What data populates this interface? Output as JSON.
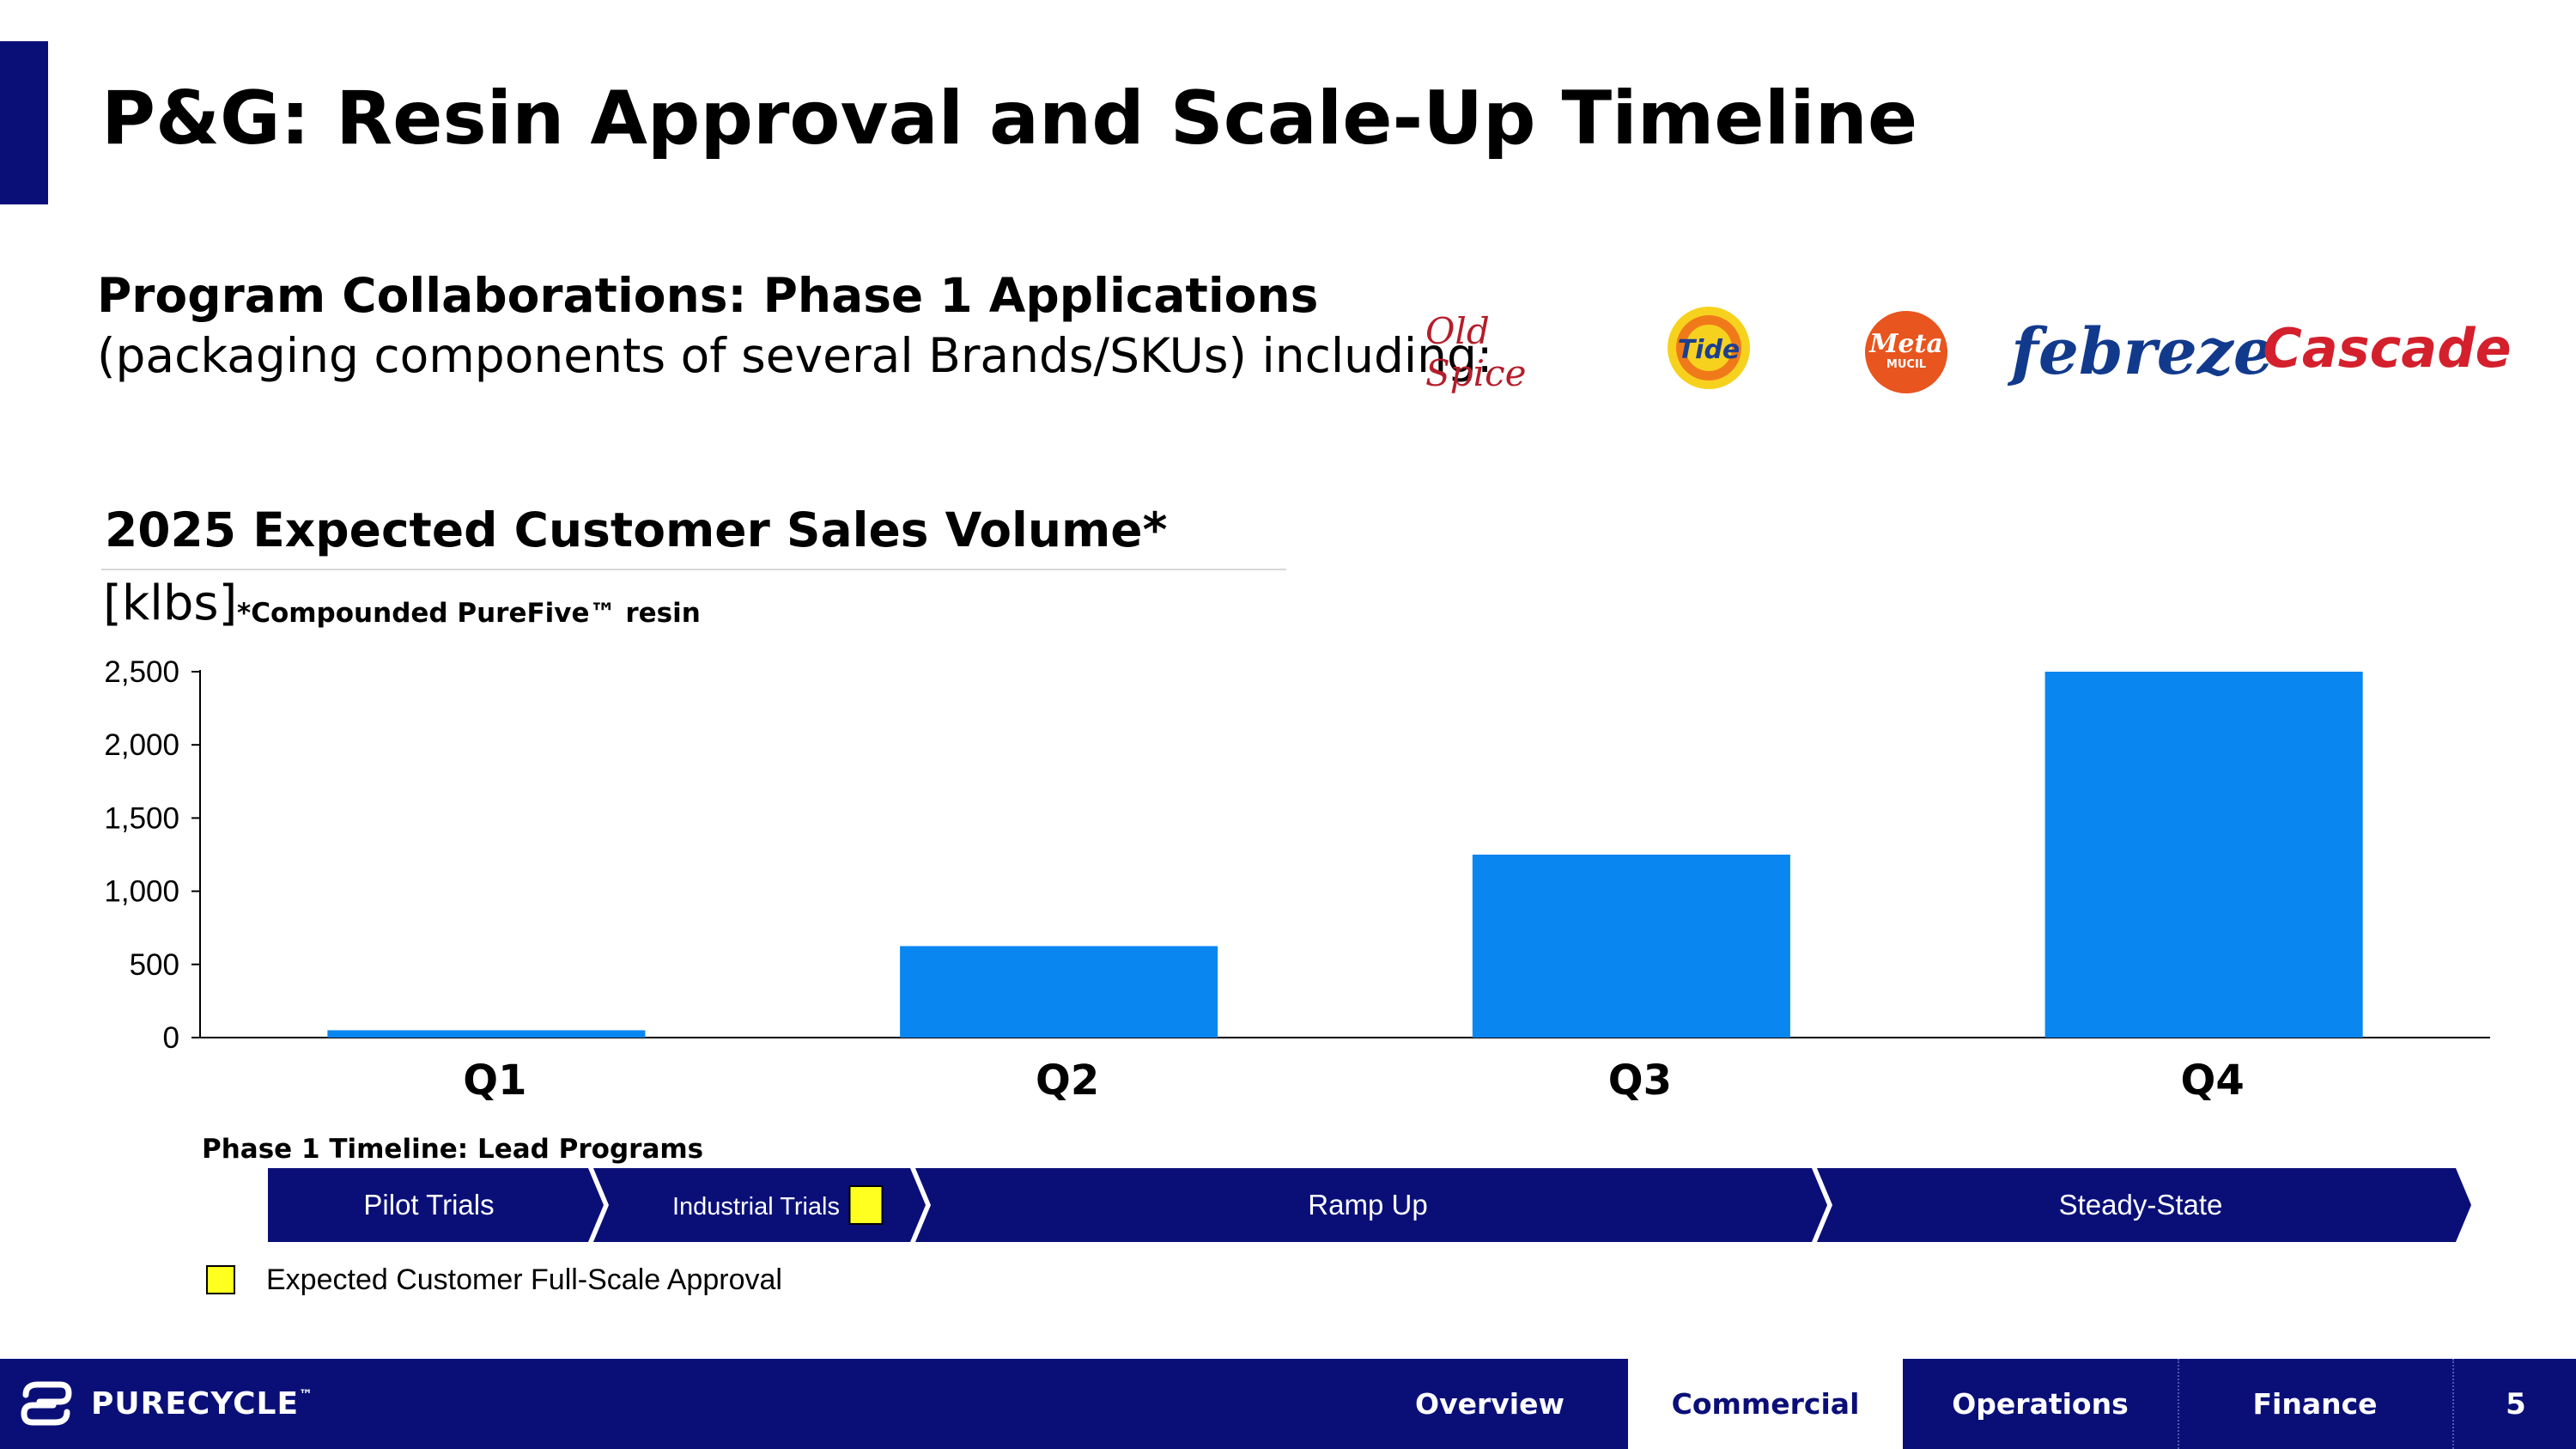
{
  "header": {
    "title": "P&G: Resin Approval and Scale-Up Timeline"
  },
  "collaborations": {
    "title": "Program Collaborations: Phase 1 Applications",
    "subtitle": "(packaging components of several Brands/SKUs) including:",
    "brands": [
      {
        "name": "Old Spice",
        "icon": "old-spice-logo",
        "color": "#b41e2a"
      },
      {
        "name": "Tide",
        "icon": "tide-logo",
        "color": "#f07a1a"
      },
      {
        "name": "Meta",
        "sub": "MUCIL",
        "icon": "metamucil-logo",
        "color": "#e8551e"
      },
      {
        "name": "febreze",
        "icon": "febreze-logo",
        "color": "#123a8c"
      },
      {
        "name": "Cascade",
        "icon": "cascade-logo",
        "color": "#d4202c"
      }
    ]
  },
  "chart_heading": {
    "title": "2025 Expected Customer Sales Volume*",
    "unit": "[klbs]",
    "note": "*Compounded PureFive™ resin"
  },
  "chart_data": {
    "type": "bar",
    "title": "2025 Expected Customer Sales Volume*",
    "xlabel": "",
    "ylabel": "[klbs]",
    "categories": [
      "Q1",
      "Q2",
      "Q3",
      "Q4"
    ],
    "values": [
      50,
      625,
      1250,
      2500
    ],
    "ylim": [
      0,
      2500
    ],
    "yticks": [
      0,
      500,
      1000,
      1500,
      2000,
      2500
    ],
    "ytick_labels": [
      "0",
      "500",
      "1,000",
      "1,500",
      "2,000",
      "2,500"
    ],
    "grid": false,
    "legend": "none",
    "bar_color": "#0a86f0"
  },
  "timeline": {
    "title": "Phase 1 Timeline: Lead Programs",
    "phases": [
      {
        "label": "Pilot Trials",
        "start": 0,
        "end": 0.5
      },
      {
        "label": "Industrial Trials",
        "start": 0.5,
        "end": 1.0
      },
      {
        "label": "Ramp Up",
        "start": 1.0,
        "end": 2.4
      },
      {
        "label": "Steady-State",
        "start": 2.4,
        "end": 3.4
      }
    ],
    "approval_marker": {
      "at": 0.93,
      "color": "#ffff20"
    },
    "color": "#0a0f78"
  },
  "legend": {
    "approval_label": "Expected Customer Full-Scale Approval"
  },
  "footer": {
    "brand": "PURECYCLE",
    "brand_mark": "™",
    "tabs": [
      {
        "label": "Overview",
        "active": false
      },
      {
        "label": "Commercial",
        "active": true
      },
      {
        "label": "Operations",
        "active": false
      },
      {
        "label": "Finance",
        "active": false
      }
    ],
    "page_number": "5"
  }
}
